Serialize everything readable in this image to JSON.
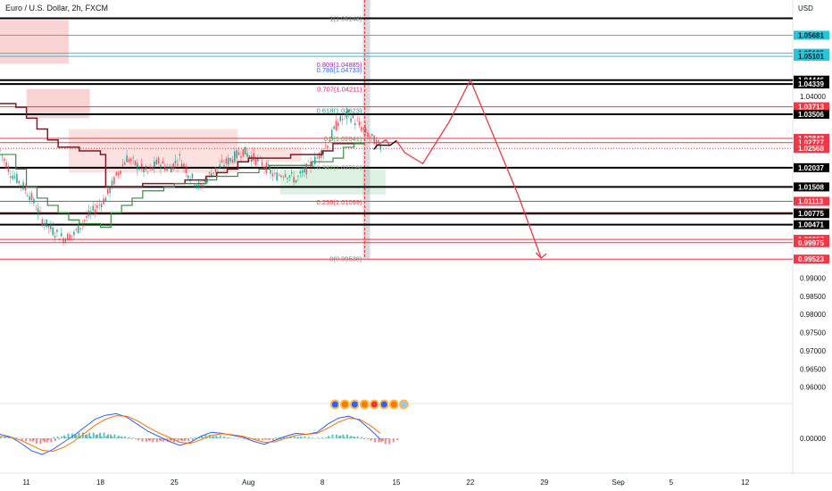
{
  "chart_data": {
    "type": "line",
    "title": "Euro / U.S. Dollar, 2h, FXCM",
    "currency_label": "USD",
    "ylim": [
      0.9555,
      1.0665
    ],
    "indicator_ylim": [
      -0.0055,
      0.0055
    ],
    "x_ticks": [
      {
        "label": "11",
        "x": 0
      },
      {
        "label": "18",
        "x": 7
      },
      {
        "label": "25",
        "x": 14
      },
      {
        "label": "Aug",
        "x": 21
      },
      {
        "label": "8",
        "x": 28
      },
      {
        "label": "15",
        "x": 35
      },
      {
        "label": "22",
        "x": 42
      },
      {
        "label": "29",
        "x": 49
      },
      {
        "label": "Sep",
        "x": 56
      },
      {
        "label": "5",
        "x": 61
      },
      {
        "label": "12",
        "x": 68
      }
    ],
    "x_range": [
      -2.5,
      72.5
    ],
    "y_ticks": [
      "1.04000",
      "0.99000",
      "0.98500",
      "0.98000",
      "0.97500",
      "0.97000",
      "0.96500",
      "0.96000"
    ],
    "indicator_ticks": [
      "0.00000"
    ],
    "price_tags": [
      {
        "label": "1.05681",
        "value": 1.05681,
        "color": "#26c6da",
        "text_color": "#131722"
      },
      {
        "label": "1.05185",
        "value": 1.05185,
        "color": "#26c6da",
        "text_color": "#131722"
      },
      {
        "label": "1.05101",
        "value": 1.05101,
        "color": "#26c6da",
        "text_color": "#131722"
      },
      {
        "label": "1.04446",
        "value": 1.04446,
        "color": "#000000",
        "text_color": "#ffffff"
      },
      {
        "label": "1.04339",
        "value": 1.04339,
        "color": "#000000",
        "text_color": "#ffffff"
      },
      {
        "label": "1.03713",
        "value": 1.03713,
        "color": "#f23645",
        "text_color": "#ffffff"
      },
      {
        "label": "1.03506",
        "value": 1.03506,
        "color": "#000000",
        "text_color": "#ffffff"
      },
      {
        "label": "1.02843",
        "value": 1.02843,
        "color": "#f23645",
        "text_color": "#ffffff"
      },
      {
        "label": "1.02727",
        "value": 1.02727,
        "color": "#f23645",
        "text_color": "#ffffff"
      },
      {
        "label": "1.02568",
        "value": 1.02568,
        "color": "#f23645",
        "text_color": "#ffffff"
      },
      {
        "label": "1.02037",
        "value": 1.02037,
        "color": "#000000",
        "text_color": "#ffffff"
      },
      {
        "label": "1.01508",
        "value": 1.01508,
        "color": "#000000",
        "text_color": "#ffffff"
      },
      {
        "label": "1.01113",
        "value": 1.01113,
        "color": "#f23645",
        "text_color": "#ffffff"
      },
      {
        "label": "1.00801",
        "value": 1.00801,
        "color": "#f23645",
        "text_color": "#ffffff"
      },
      {
        "label": "1.00775",
        "value": 1.00775,
        "color": "#000000",
        "text_color": "#ffffff"
      },
      {
        "label": "1.00471",
        "value": 1.00471,
        "color": "#000000",
        "text_color": "#ffffff"
      },
      {
        "label": "1.00067",
        "value": 1.00067,
        "color": "#f23645",
        "text_color": "#ffffff"
      },
      {
        "label": "0.99975",
        "value": 0.99975,
        "color": "#f23645",
        "text_color": "#ffffff"
      },
      {
        "label": "0.99523",
        "value": 0.99523,
        "color": "#f23645",
        "text_color": "#ffffff"
      }
    ],
    "horizontal_levels": [
      {
        "value": 1.06148,
        "color": "#000000",
        "width": 2
      },
      {
        "value": 1.05681,
        "color": "#26c6da",
        "width": 1
      },
      {
        "value": 1.05185,
        "color": "#26c6da",
        "width": 1
      },
      {
        "value": 1.05101,
        "color": "#26c6da",
        "width": 1
      },
      {
        "value": 1.04446,
        "color": "#000000",
        "width": 2
      },
      {
        "value": 1.04339,
        "color": "#000000",
        "width": 2
      },
      {
        "value": 1.03713,
        "color": "#f23645",
        "width": 1
      },
      {
        "value": 1.03506,
        "color": "#000000",
        "width": 2
      },
      {
        "value": 1.02843,
        "color": "#f23645",
        "width": 1
      },
      {
        "value": 1.02727,
        "color": "#f23645",
        "width": 1
      },
      {
        "value": 1.02037,
        "color": "#000000",
        "width": 2
      },
      {
        "value": 1.01508,
        "color": "#000000",
        "width": 2
      },
      {
        "value": 1.01113,
        "color": "#f23645",
        "width": 1
      },
      {
        "value": 1.00801,
        "color": "#f23645",
        "width": 1
      },
      {
        "value": 1.00775,
        "color": "#000000",
        "width": 2
      },
      {
        "value": 1.00471,
        "color": "#000000",
        "width": 2
      },
      {
        "value": 1.00067,
        "color": "#f23645",
        "width": 1
      },
      {
        "value": 0.99975,
        "color": "#f23645",
        "width": 1
      },
      {
        "value": 0.99523,
        "color": "#f23645",
        "width": 1
      }
    ],
    "fib_levels": [
      {
        "label": "1(1.06148)",
        "value": 1.06148,
        "color": "#787b86"
      },
      {
        "label": "0.809(1.04885)",
        "value": 1.04885,
        "color": "#9c27b0"
      },
      {
        "label": "0.786(1.04733)",
        "value": 1.04733,
        "color": "#2962ff"
      },
      {
        "label": "0.707(1.04211)",
        "value": 1.04211,
        "color": "#e91e63"
      },
      {
        "label": "0.618(1.03623)",
        "value": 1.03623,
        "color": "#089981"
      },
      {
        "label": "0.5(1.02841)",
        "value": 1.02841,
        "color": "#4caf50"
      },
      {
        "label": "0.382(1.02059)",
        "value": 1.02059,
        "color": "#81c784"
      },
      {
        "label": "0.236(1.01099)",
        "value": 1.01099,
        "color": "#f23645"
      },
      {
        "label": "0(0.99538)",
        "value": 0.99538,
        "color": "#787b86"
      }
    ],
    "price_series": {
      "x": [
        -2.5,
        -1.5,
        -0.5,
        0.5,
        1.5,
        2.5,
        3.5,
        4.5,
        5.5,
        6.5,
        7.5,
        8.5,
        9.5,
        10.5,
        11.5,
        12.5,
        13.5,
        14.5,
        15.5,
        16.5,
        17.5,
        18.5,
        19.5,
        20.5,
        21.5,
        22.5,
        23.5,
        24.5,
        25.5,
        26.5,
        27.5,
        28.5,
        29.5,
        30.5,
        31.5,
        32.5,
        33.5
      ],
      "values": [
        1.025,
        1.019,
        1.016,
        1.012,
        1.006,
        1.003,
        1.001,
        1.002,
        1.006,
        1.009,
        1.012,
        1.018,
        1.023,
        1.021,
        1.019,
        1.022,
        1.02,
        1.023,
        1.018,
        1.015,
        1.019,
        1.021,
        1.023,
        1.025,
        1.023,
        1.021,
        1.018,
        1.019,
        1.017,
        1.02,
        1.023,
        1.027,
        1.033,
        1.035,
        1.032,
        1.029,
        1.026
      ]
    },
    "red_line": {
      "x": [
        -2.5,
        -1,
        0,
        1,
        2,
        3,
        4,
        5,
        6,
        7,
        7.5,
        8,
        9,
        10,
        11,
        12,
        13,
        14,
        15,
        16,
        17,
        18,
        19,
        20,
        21,
        22,
        23,
        24,
        25,
        26,
        27,
        28,
        29,
        30,
        31,
        32
      ],
      "values": [
        1.038,
        1.037,
        1.034,
        1.031,
        1.028,
        1.026,
        1.026,
        1.025,
        1.025,
        1.024,
        1.015,
        1.015,
        1.015,
        1.015,
        1.016,
        1.016,
        1.016,
        1.016,
        1.017,
        1.017,
        1.018,
        1.019,
        1.02,
        1.022,
        1.023,
        1.023,
        1.023,
        1.023,
        1.024,
        1.024,
        1.024,
        1.025,
        1.027,
        1.027,
        1.027,
        1.027
      ]
    },
    "green_line": {
      "x": [
        -2.5,
        -1,
        0,
        1,
        2,
        3,
        4,
        5,
        6,
        7,
        8,
        9,
        10,
        11,
        12,
        13,
        14,
        15,
        16,
        17,
        18,
        19,
        20,
        21,
        22,
        23,
        24,
        25,
        26,
        27,
        28,
        29,
        30,
        31,
        32
      ],
      "values": [
        1.024,
        1.02,
        1.015,
        1.012,
        1.01,
        1.008,
        1.006,
        1.005,
        1.005,
        1.004,
        1.008,
        1.01,
        1.012,
        1.014,
        1.014,
        1.015,
        1.016,
        1.016,
        1.016,
        1.017,
        1.018,
        1.018,
        1.019,
        1.019,
        1.02,
        1.021,
        1.021,
        1.021,
        1.021,
        1.022,
        1.022,
        1.023,
        1.026,
        1.027,
        1.027
      ]
    },
    "forecast_path": {
      "x": [
        33.2,
        34.0,
        34.4,
        35.0,
        35.8,
        37.5,
        40.0,
        42.0,
        46.5,
        48.7
      ],
      "values": [
        1.0266,
        1.028,
        1.0265,
        1.0278,
        1.0245,
        1.0215,
        1.033,
        1.0445,
        1.013,
        0.9955
      ]
    },
    "ichimoku_cloud": [
      {
        "x0": -2.5,
        "x1": 4,
        "top": 1.061,
        "bottom": 1.049,
        "color": "#f8c9c9"
      },
      {
        "x0": 0,
        "x1": 6,
        "top": 1.042,
        "bottom": 1.034,
        "color": "#f8c9c9"
      },
      {
        "x0": 4,
        "x1": 20,
        "top": 1.031,
        "bottom": 1.019,
        "color": "#fbdada"
      },
      {
        "x0": 20,
        "x1": 26,
        "top": 1.026,
        "bottom": 1.022,
        "color": "#fbdada"
      },
      {
        "x0": 24,
        "x1": 34,
        "top": 1.02,
        "bottom": 1.013,
        "color": "#d6efd9"
      }
    ],
    "current_price": 1.02568,
    "vertical_marker_x": 32,
    "macd": {
      "x": [
        -2.5,
        -1.5,
        -0.5,
        0.5,
        1.5,
        2.5,
        3.5,
        4.5,
        5.5,
        6.5,
        7.5,
        8.5,
        9.5,
        10.5,
        11.5,
        12.5,
        13.5,
        14.5,
        15.5,
        16.5,
        17.5,
        18.5,
        19.5,
        20.5,
        21.5,
        22.5,
        23.5,
        24.5,
        25.5,
        26.5,
        27.5,
        28.5,
        29.5,
        30.5,
        31.5,
        32.5,
        33.5
      ],
      "macd_values": [
        0.0008,
        0.0003,
        -0.001,
        -0.0025,
        -0.0032,
        -0.0022,
        -0.0008,
        0.0006,
        0.0022,
        0.0038,
        0.0046,
        0.0049,
        0.0042,
        0.0028,
        0.0014,
        0.0004,
        -0.0006,
        -0.0014,
        -0.0008,
        0.0004,
        0.0012,
        0.001,
        0.0006,
        0.0002,
        -0.0006,
        -0.0012,
        -0.0004,
        0.0004,
        0.001,
        0.0008,
        0.0012,
        0.0028,
        0.004,
        0.0044,
        0.0036,
        0.0018,
        -0.0002
      ],
      "signal_values": [
        0.0004,
        0.0002,
        -0.0004,
        -0.0014,
        -0.0024,
        -0.0026,
        -0.0018,
        -0.0006,
        0.001,
        0.0026,
        0.0038,
        0.0045,
        0.0044,
        0.0035,
        0.0022,
        0.0011,
        0.0002,
        -0.0008,
        -0.001,
        -0.0003,
        0.0006,
        0.0009,
        0.0007,
        0.0004,
        -0.0002,
        -0.0008,
        -0.0007,
        0.0,
        0.0006,
        0.0008,
        0.001,
        0.002,
        0.0032,
        0.004,
        0.0038,
        0.0026,
        0.001
      ],
      "macd_color": "#2962ff",
      "signal_color": "#ff6d00",
      "hist_up_color": "#26a69a",
      "hist_down_color": "#ef5350"
    },
    "colors": {
      "candle_up": "#089981",
      "candle_down": "#f23645",
      "fib_fill": "#b2b5be",
      "forecast": "#f23645"
    }
  }
}
